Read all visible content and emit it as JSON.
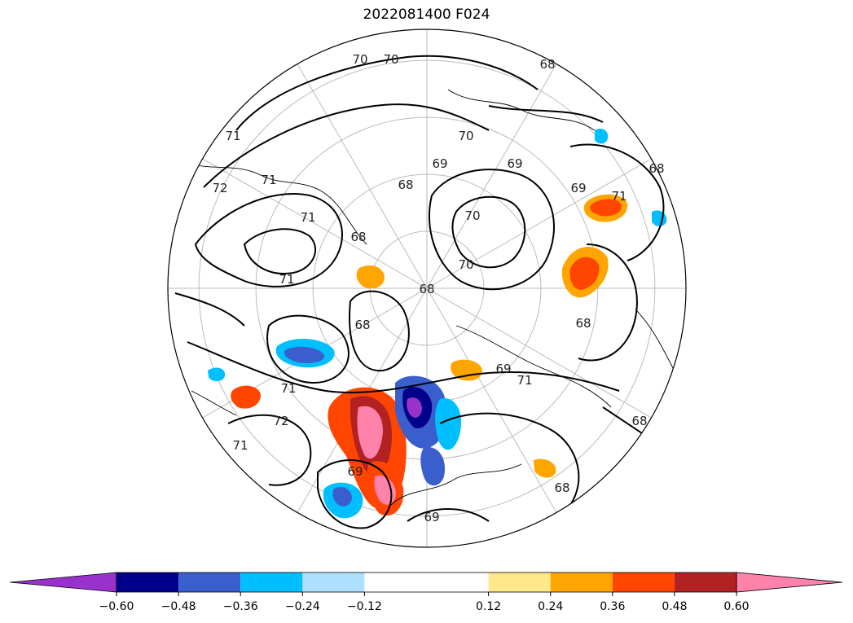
{
  "chart_data": {
    "type": "heatmap",
    "title": "2022081400 F024",
    "projection": "north polar stereographic",
    "colorbar": {
      "levels": [
        -0.72,
        -0.6,
        -0.48,
        -0.36,
        -0.24,
        -0.12,
        0.12,
        0.24,
        0.36,
        0.48,
        0.6,
        0.72
      ],
      "tick_values": [
        -0.6,
        -0.48,
        -0.36,
        -0.24,
        -0.12,
        0.12,
        0.24,
        0.36,
        0.48,
        0.6
      ],
      "tick_labels": [
        "−0.60",
        "−0.48",
        "−0.36",
        "−0.24",
        "−0.12",
        "0.12",
        "0.24",
        "0.36",
        "0.48",
        "0.60"
      ],
      "colors": [
        "#9932CC",
        "#00008B",
        "#3A5FCD",
        "#00BFFF",
        "#ADDFFF",
        "#FFFFFF",
        "#FFE78C",
        "#FFA500",
        "#FF4500",
        "#B22222",
        "#FF82AB"
      ],
      "extend": "both"
    },
    "contour_labels": [
      "70",
      "70",
      "68",
      "70",
      "71",
      "72",
      "71",
      "71",
      "69",
      "68",
      "68",
      "69",
      "69",
      "70",
      "70",
      "71",
      "68",
      "71",
      "71",
      "69",
      "72",
      "71",
      "69",
      "68",
      "68",
      "68",
      "68",
      "69",
      "71",
      "68"
    ],
    "grid": true
  }
}
